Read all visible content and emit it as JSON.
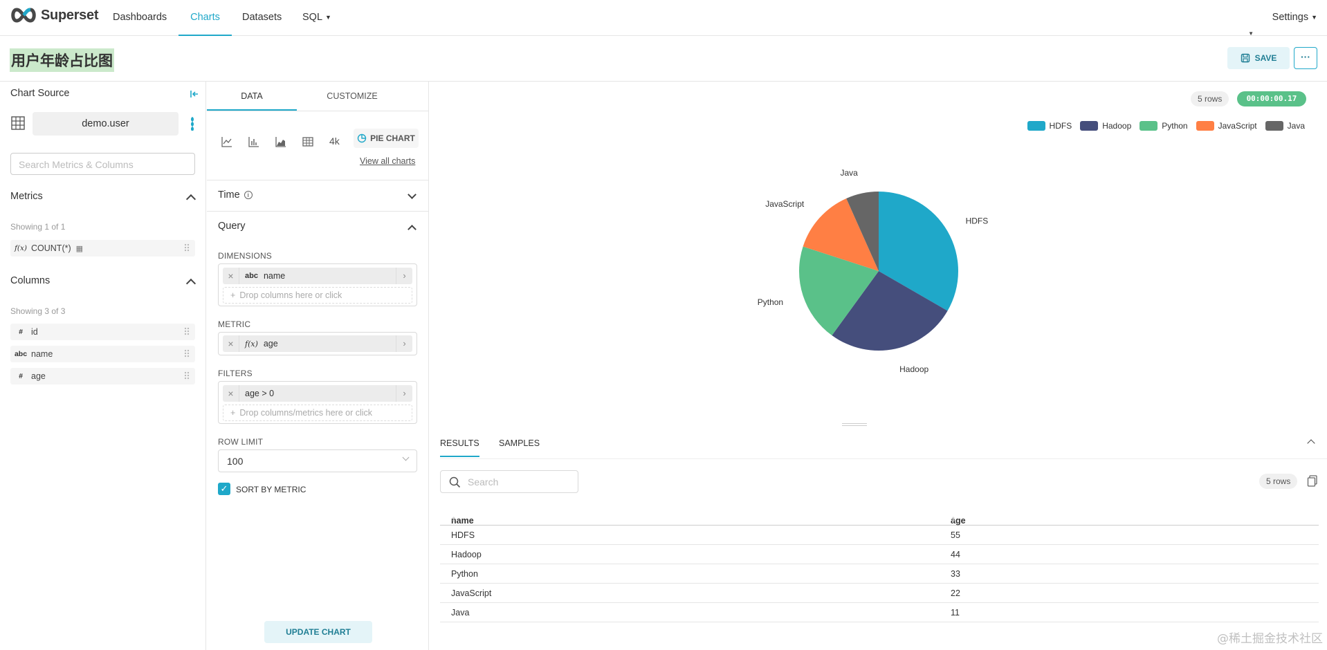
{
  "app": {
    "name": "Superset",
    "nav": [
      "Dashboards",
      "Charts",
      "Datasets",
      "SQL"
    ],
    "active_nav": "Charts",
    "settings_label": "Settings"
  },
  "header": {
    "chart_title": "用户年龄占比图",
    "save_label": "SAVE",
    "more_label": "···"
  },
  "datasource": {
    "title": "Chart Source",
    "dataset_name": "demo.user",
    "search_placeholder": "Search Metrics & Columns",
    "metrics_title": "Metrics",
    "metrics_showing": "Showing 1 of 1",
    "metrics": [
      {
        "type": "f(x)",
        "name": "COUNT(*)"
      }
    ],
    "columns_title": "Columns",
    "columns_showing": "Showing 3 of 3",
    "columns": [
      {
        "type": "#",
        "name": "id"
      },
      {
        "type": "abc",
        "name": "name"
      },
      {
        "type": "#",
        "name": "age"
      }
    ]
  },
  "controls": {
    "tabs": [
      "DATA",
      "CUSTOMIZE"
    ],
    "active_tab": "DATA",
    "big_number_label": "4k",
    "viz_type_label": "PIE CHART",
    "view_all_charts": "View all charts",
    "time_section": "Time",
    "query_section": "Query",
    "dimensions_label": "DIMENSIONS",
    "dimension": {
      "type": "abc",
      "name": "name"
    },
    "drop_columns": "Drop columns here or click",
    "metric_label": "METRIC",
    "metric": {
      "type": "f(x)",
      "name": "age"
    },
    "filters_label": "FILTERS",
    "filter": "age > 0",
    "drop_filters": "Drop columns/metrics here or click",
    "row_limit_label": "ROW LIMIT",
    "row_limit": "100",
    "sort_by_metric_label": "SORT BY METRIC",
    "sort_by_metric": true,
    "update_label": "UPDATE CHART"
  },
  "chart_meta": {
    "rows_badge": "5 rows",
    "timer": "00:00:00.17"
  },
  "chart_data": {
    "type": "pie",
    "title": "",
    "categories": [
      "HDFS",
      "Hadoop",
      "Python",
      "JavaScript",
      "Java"
    ],
    "values": [
      55,
      44,
      33,
      22,
      11
    ],
    "colors": [
      "#1fa8c9",
      "#454e7c",
      "#5ac189",
      "#ff7f44",
      "#666666"
    ],
    "legend_position": "top-right"
  },
  "results": {
    "tabs": [
      "RESULTS",
      "SAMPLES"
    ],
    "active_tab": "RESULTS",
    "search_placeholder": "Search",
    "rows_badge": "5 rows",
    "columns": [
      "name",
      "age"
    ],
    "rows": [
      [
        "HDFS",
        "55"
      ],
      [
        "Hadoop",
        "44"
      ],
      [
        "Python",
        "33"
      ],
      [
        "JavaScript",
        "22"
      ],
      [
        "Java",
        "11"
      ]
    ]
  },
  "watermark": "@稀土掘金技术社区"
}
